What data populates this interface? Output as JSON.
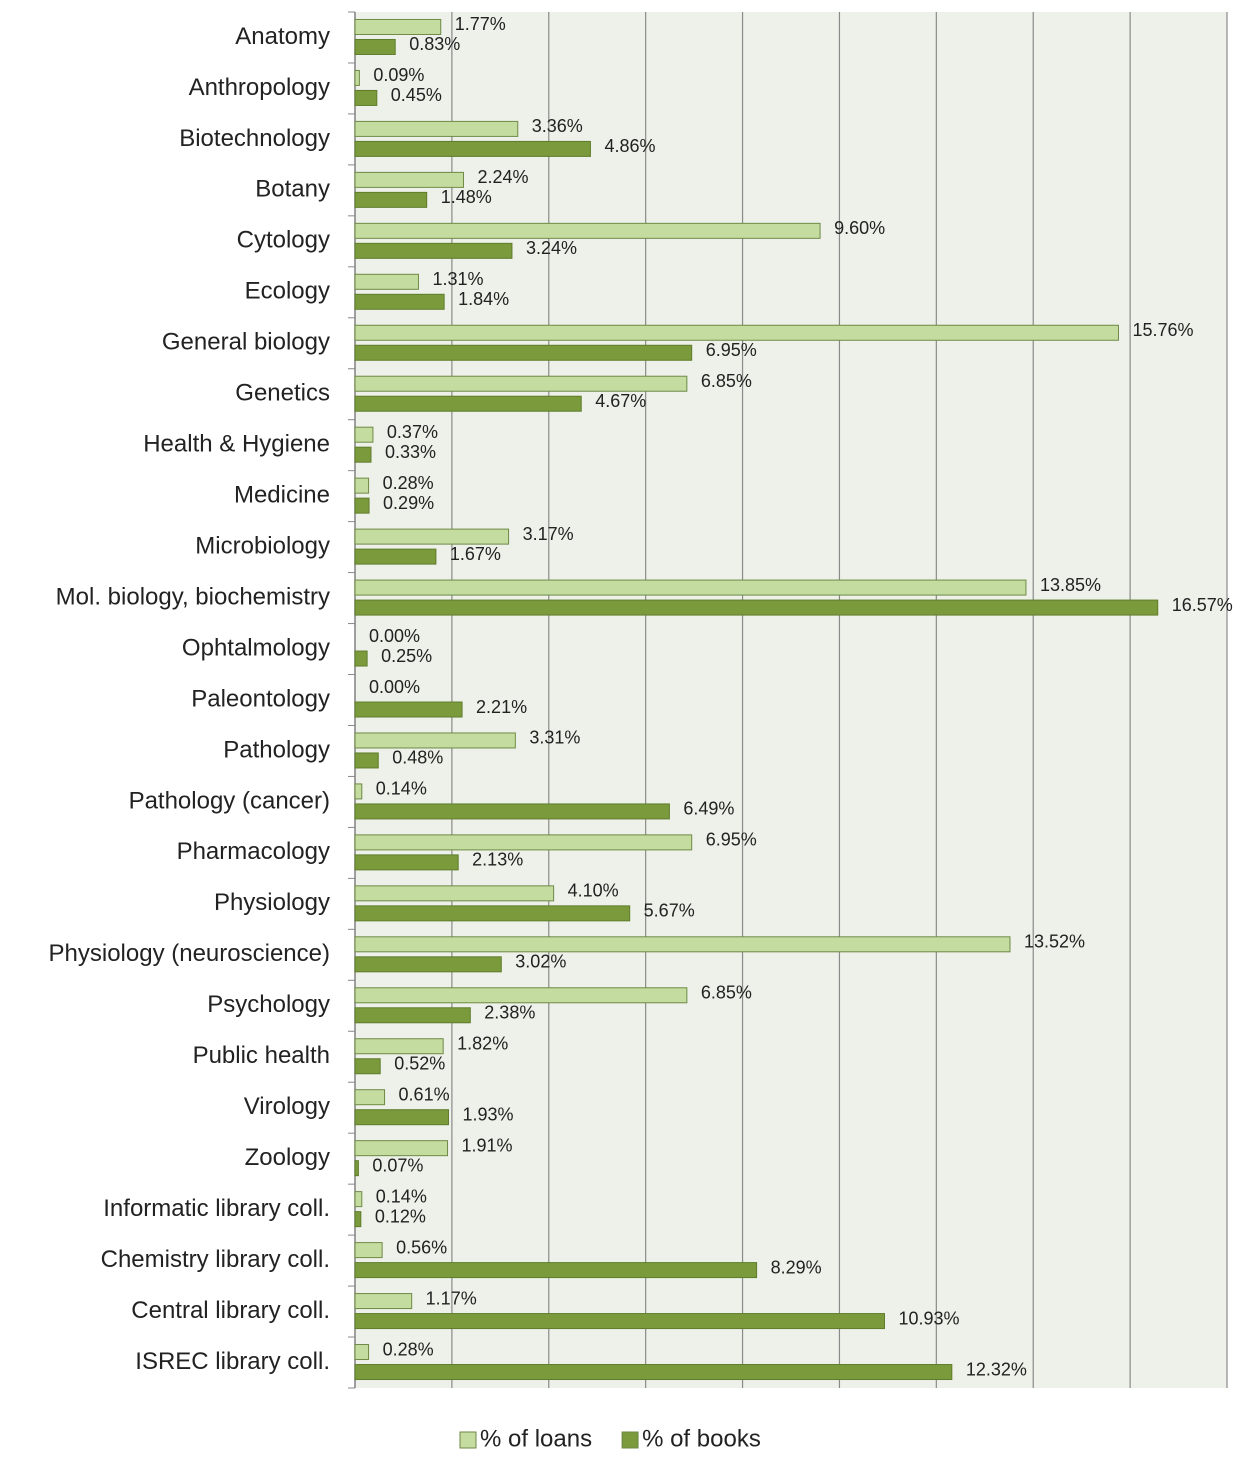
{
  "chart_data": {
    "type": "barh",
    "categories": [
      "Anatomy",
      "Anthropology",
      "Biotechnology",
      "Botany",
      "Cytology",
      "Ecology",
      "General biology",
      "Genetics",
      "Health & Hygiene",
      "Medicine",
      "Microbiology",
      "Mol. biology, biochemistry",
      "Ophtalmology",
      "Paleontology",
      "Pathology",
      "Pathology (cancer)",
      "Pharmacology",
      "Physiology",
      "Physiology (neuroscience)",
      "Psychology",
      "Public health",
      "Virology",
      "Zoology",
      "Informatic library coll.",
      "Chemistry library coll.",
      "Central library coll.",
      "ISREC library coll."
    ],
    "series": [
      {
        "name": "% of loans",
        "color": "#c5dca0",
        "values": [
          1.77,
          0.09,
          3.36,
          2.24,
          9.6,
          1.31,
          15.76,
          6.85,
          0.37,
          0.28,
          3.17,
          13.85,
          0.0,
          0.0,
          3.31,
          0.14,
          6.95,
          4.1,
          13.52,
          6.85,
          1.82,
          0.61,
          1.91,
          0.14,
          0.56,
          1.17,
          0.28
        ],
        "value_labels": [
          "1.77%",
          "0.09%",
          "3.36%",
          "2.24%",
          "9.60%",
          "1.31%",
          "15.76%",
          "6.85%",
          "0.37%",
          "0.28%",
          "3.17%",
          "13.85%",
          "0.00%",
          "0.00%",
          "3.31%",
          "0.14%",
          "6.95%",
          "4.10%",
          "13.52%",
          "6.85%",
          "1.82%",
          "0.61%",
          "1.91%",
          "0.14%",
          "0.56%",
          "1.17%",
          "0.28%"
        ]
      },
      {
        "name": "% of books",
        "color": "#7a9a3c",
        "values": [
          0.83,
          0.45,
          4.86,
          1.48,
          3.24,
          1.84,
          6.95,
          4.67,
          0.33,
          0.29,
          1.67,
          16.57,
          0.25,
          2.21,
          0.48,
          6.49,
          2.13,
          5.67,
          3.02,
          2.38,
          0.52,
          1.93,
          0.07,
          0.12,
          8.29,
          10.93,
          12.32
        ],
        "value_labels": [
          "0.83%",
          "0.45%",
          "4.86%",
          "1.48%",
          "3.24%",
          "1.84%",
          "6.95%",
          "4.67%",
          "0.33%",
          "0.29%",
          "1.67%",
          "16.57%",
          "0.25%",
          "2.21%",
          "0.48%",
          "6.49%",
          "2.13%",
          "5.67%",
          "3.02%",
          "2.38%",
          "0.52%",
          "1.93%",
          "0.07%",
          "0.12%",
          "8.29%",
          "10.93%",
          "12.32%"
        ]
      }
    ],
    "xlim": [
      0,
      18
    ],
    "xticks": [
      0,
      2,
      4,
      6,
      8,
      10,
      12,
      14,
      16,
      18
    ],
    "grid": true,
    "legend": "bottom"
  }
}
